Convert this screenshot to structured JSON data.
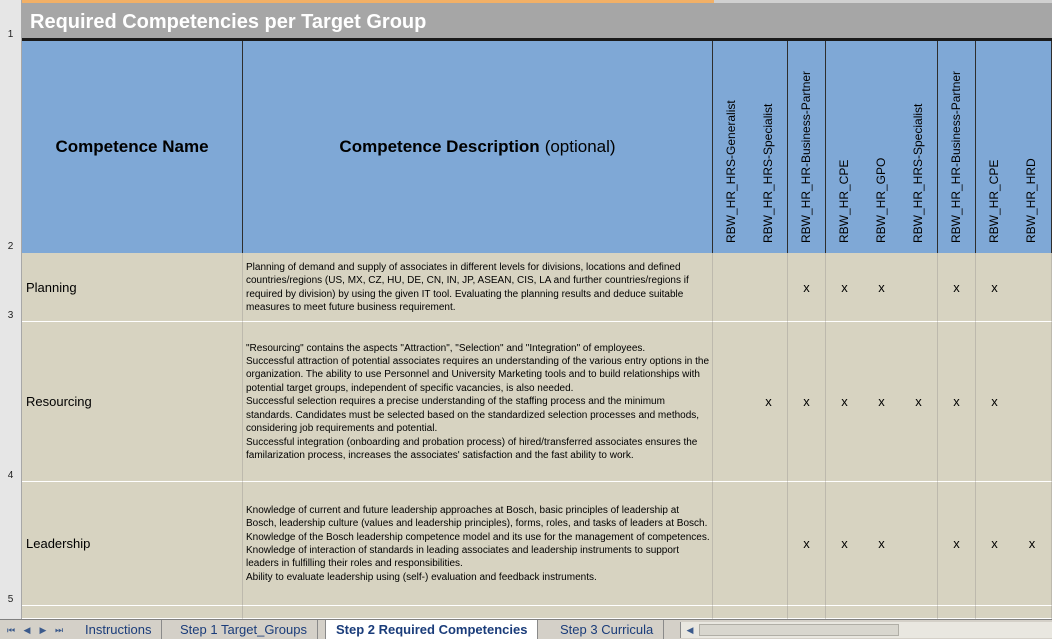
{
  "sheet": {
    "title": "Required Competencies per Target Group",
    "row_numbers": [
      "1",
      "2",
      "3",
      "4",
      "5"
    ],
    "header": {
      "name": "Competence Name",
      "description": "Competence Description",
      "description_optional": "(optional)",
      "target_groups": [
        "RBW_HR_HRS-Generalist",
        "RBW_HR_HRS-Specialist",
        "RBW_HR_HR-Business-Partner",
        "RBW_HR_CPE",
        "RBW_HR_GPO",
        "RBW_HR_HRS-Specialist",
        "RBW_HR_HR-Business-Partner",
        "RBW_HR_CPE",
        "RBW_HR_HRD"
      ]
    },
    "rows": [
      {
        "name": "Planning",
        "description": "Planning of demand and supply of associates in different levels for divisions, locations and defined countries/regions (US, MX, CZ, HU, DE, CN, IN, JP, ASEAN, CIS, LA and further countries/regions if required by division) by using the given IT tool. Evaluating the planning results and deduce suitable measures to meet future business requirement.",
        "marks": [
          "",
          "",
          "x",
          "x",
          "x",
          "",
          "x",
          "x",
          ""
        ]
      },
      {
        "name": "Resourcing",
        "description": "\"Resourcing\" contains the aspects \"Attraction\", \"Selection\" and \"Integration\" of employees.\nSuccessful attraction of potential associates requires an understanding of the various entry options in the organization. The ability to use Personnel and University Marketing tools and to build relationships with potential target groups, independent of specific vacancies, is also needed.\nSuccessful selection requires a precise understanding of the staffing process and the minimum standards. Candidates must be selected based on the standardized selection processes and methods, considering job requirements and potential.\nSuccessful integration (onboarding and probation process) of hired/transferred associates ensures the familarization process, increases the associates' satisfaction and the fast ability to work.",
        "marks": [
          "",
          "x",
          "x",
          "x",
          "x",
          "x",
          "x",
          "x",
          ""
        ]
      },
      {
        "name": "Leadership",
        "description": "Knowledge of current and future leadership approaches at Bosch, basic principles of leadership at Bosch, leadership culture (values and leadership principles), forms, roles, and tasks of leaders at Bosch.\nKnowledge of the Bosch leadership competence model and its use for the management of competences.\nKnowledge of interaction of standards in leading associates and leadership instruments to support leaders in fulfilling their roles and responsibilities.\nAbility to evaluate leadership using (self-) evaluation and feedback instruments.",
        "marks": [
          "",
          "",
          "x",
          "x",
          "x",
          "",
          "x",
          "x",
          "x"
        ]
      }
    ]
  },
  "tabbar": {
    "nav_first": "⏮",
    "nav_prev": "◀",
    "nav_next": "▶",
    "nav_last": "⏭",
    "tabs": [
      {
        "label": "Instructions",
        "active": false
      },
      {
        "label": "Step 1 Target_Groups",
        "active": false
      },
      {
        "label": "Step 2 Required Competencies",
        "active": true
      },
      {
        "label": "Step 3 Curricula",
        "active": false
      }
    ],
    "scroll_arrow": "◀"
  }
}
